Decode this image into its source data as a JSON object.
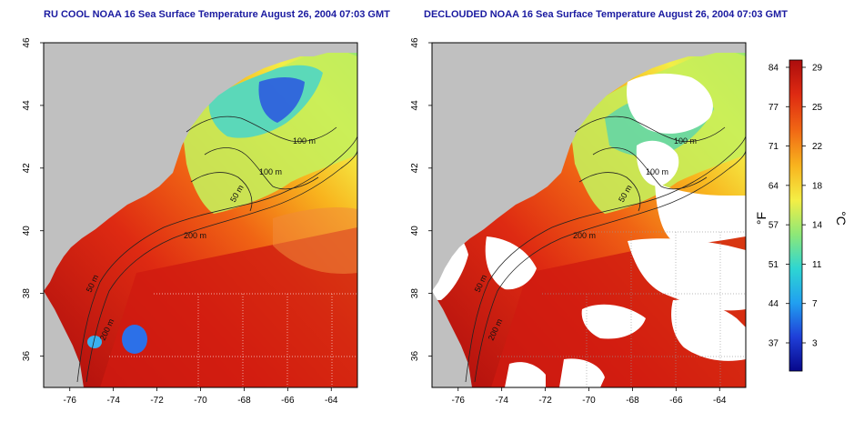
{
  "panels": [
    {
      "title": "RU COOL NOAA 16 Sea Surface Temperature August 26, 2004 07:03 GMT",
      "isobaths": [
        "100 m",
        "100 m",
        "50 m",
        "200 m",
        "50 m",
        "200 m"
      ]
    },
    {
      "title": "DECLOUDED NOAA 16 Sea Surface Temperature August 26, 2004 07:03 GMT",
      "isobaths": [
        "100 m",
        "100 m",
        "50 m",
        "200 m",
        "50 m",
        "200 m"
      ]
    }
  ],
  "axes": {
    "lon_ticks": [
      "-76",
      "-74",
      "-72",
      "-70",
      "-68",
      "-66",
      "-64"
    ],
    "lat_ticks": [
      "46",
      "44",
      "42",
      "40",
      "38",
      "36"
    ],
    "lon_range": [
      -77.2,
      -62.8
    ],
    "lat_range": [
      35.0,
      46.0
    ]
  },
  "colorbar": {
    "f_label": "°F",
    "c_label": "°C",
    "f_ticks": [
      "84",
      "77",
      "71",
      "64",
      "57",
      "51",
      "44",
      "37"
    ],
    "c_ticks": [
      "29",
      "25",
      "22",
      "18",
      "14",
      "11",
      "7",
      "3"
    ],
    "stops": [
      "#07078a",
      "#1f3fd8",
      "#21a0f0",
      "#2ed6d2",
      "#8ee877",
      "#f4ee45",
      "#f8b41e",
      "#f06414",
      "#de2a12",
      "#ac0d0d"
    ]
  },
  "colors": {
    "land": "#c0c0c0",
    "cloud": "#ffffff",
    "title": "#1a1aa0",
    "contour": "#222222",
    "grid": "#ffffff"
  }
}
